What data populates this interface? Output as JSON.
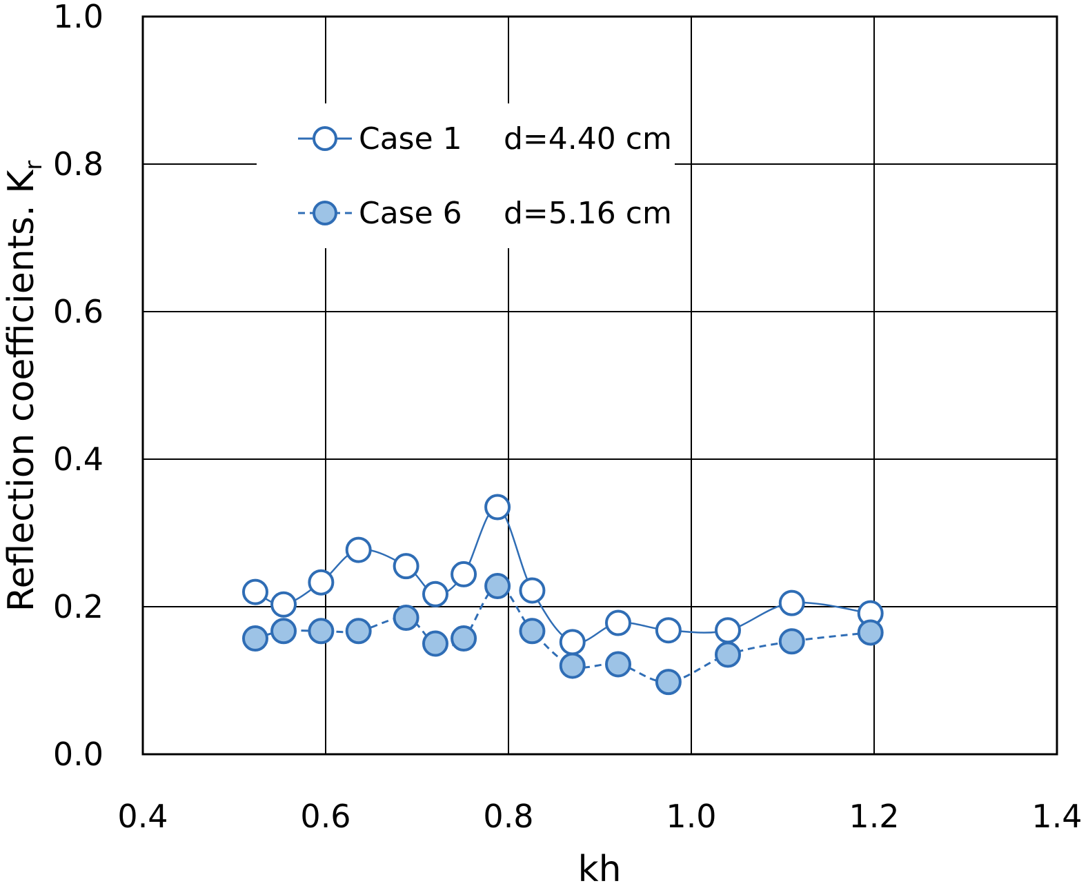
{
  "chart_data": {
    "type": "line",
    "xlabel": "kh",
    "ylabel": "Reflection coefficients. K",
    "ylabel_subscript": "r",
    "xlim": [
      0.4,
      1.4
    ],
    "ylim": [
      0.0,
      1.0
    ],
    "xticks": [
      "0.4",
      "0.6",
      "0.8",
      "1.0",
      "1.2",
      "1.4"
    ],
    "yticks": [
      "0.0",
      "0.2",
      "0.4",
      "0.6",
      "0.8",
      "1.0"
    ],
    "grid": true,
    "legend_position": "top-left",
    "series": [
      {
        "name": "Case 1",
        "note": "d=4.40 cm",
        "marker": "open-circle",
        "line": "solid",
        "color": "#2F6DB5",
        "x": [
          0.523,
          0.554,
          0.595,
          0.636,
          0.688,
          0.72,
          0.751,
          0.788,
          0.826,
          0.87,
          0.92,
          0.975,
          1.04,
          1.11,
          1.196
        ],
        "y": [
          0.22,
          0.203,
          0.233,
          0.277,
          0.255,
          0.217,
          0.244,
          0.335,
          0.222,
          0.152,
          0.178,
          0.168,
          0.168,
          0.205,
          0.191
        ]
      },
      {
        "name": "Case 6",
        "note": "d=5.16 cm",
        "marker": "filled-circle",
        "line": "dashed",
        "color": "#2F6DB5",
        "fill": "#9DC3E6",
        "x": [
          0.523,
          0.554,
          0.595,
          0.636,
          0.688,
          0.72,
          0.751,
          0.788,
          0.826,
          0.87,
          0.92,
          0.975,
          1.04,
          1.11,
          1.196
        ],
        "y": [
          0.157,
          0.167,
          0.167,
          0.167,
          0.185,
          0.15,
          0.157,
          0.228,
          0.167,
          0.12,
          0.122,
          0.098,
          0.135,
          0.153,
          0.165
        ]
      }
    ]
  }
}
